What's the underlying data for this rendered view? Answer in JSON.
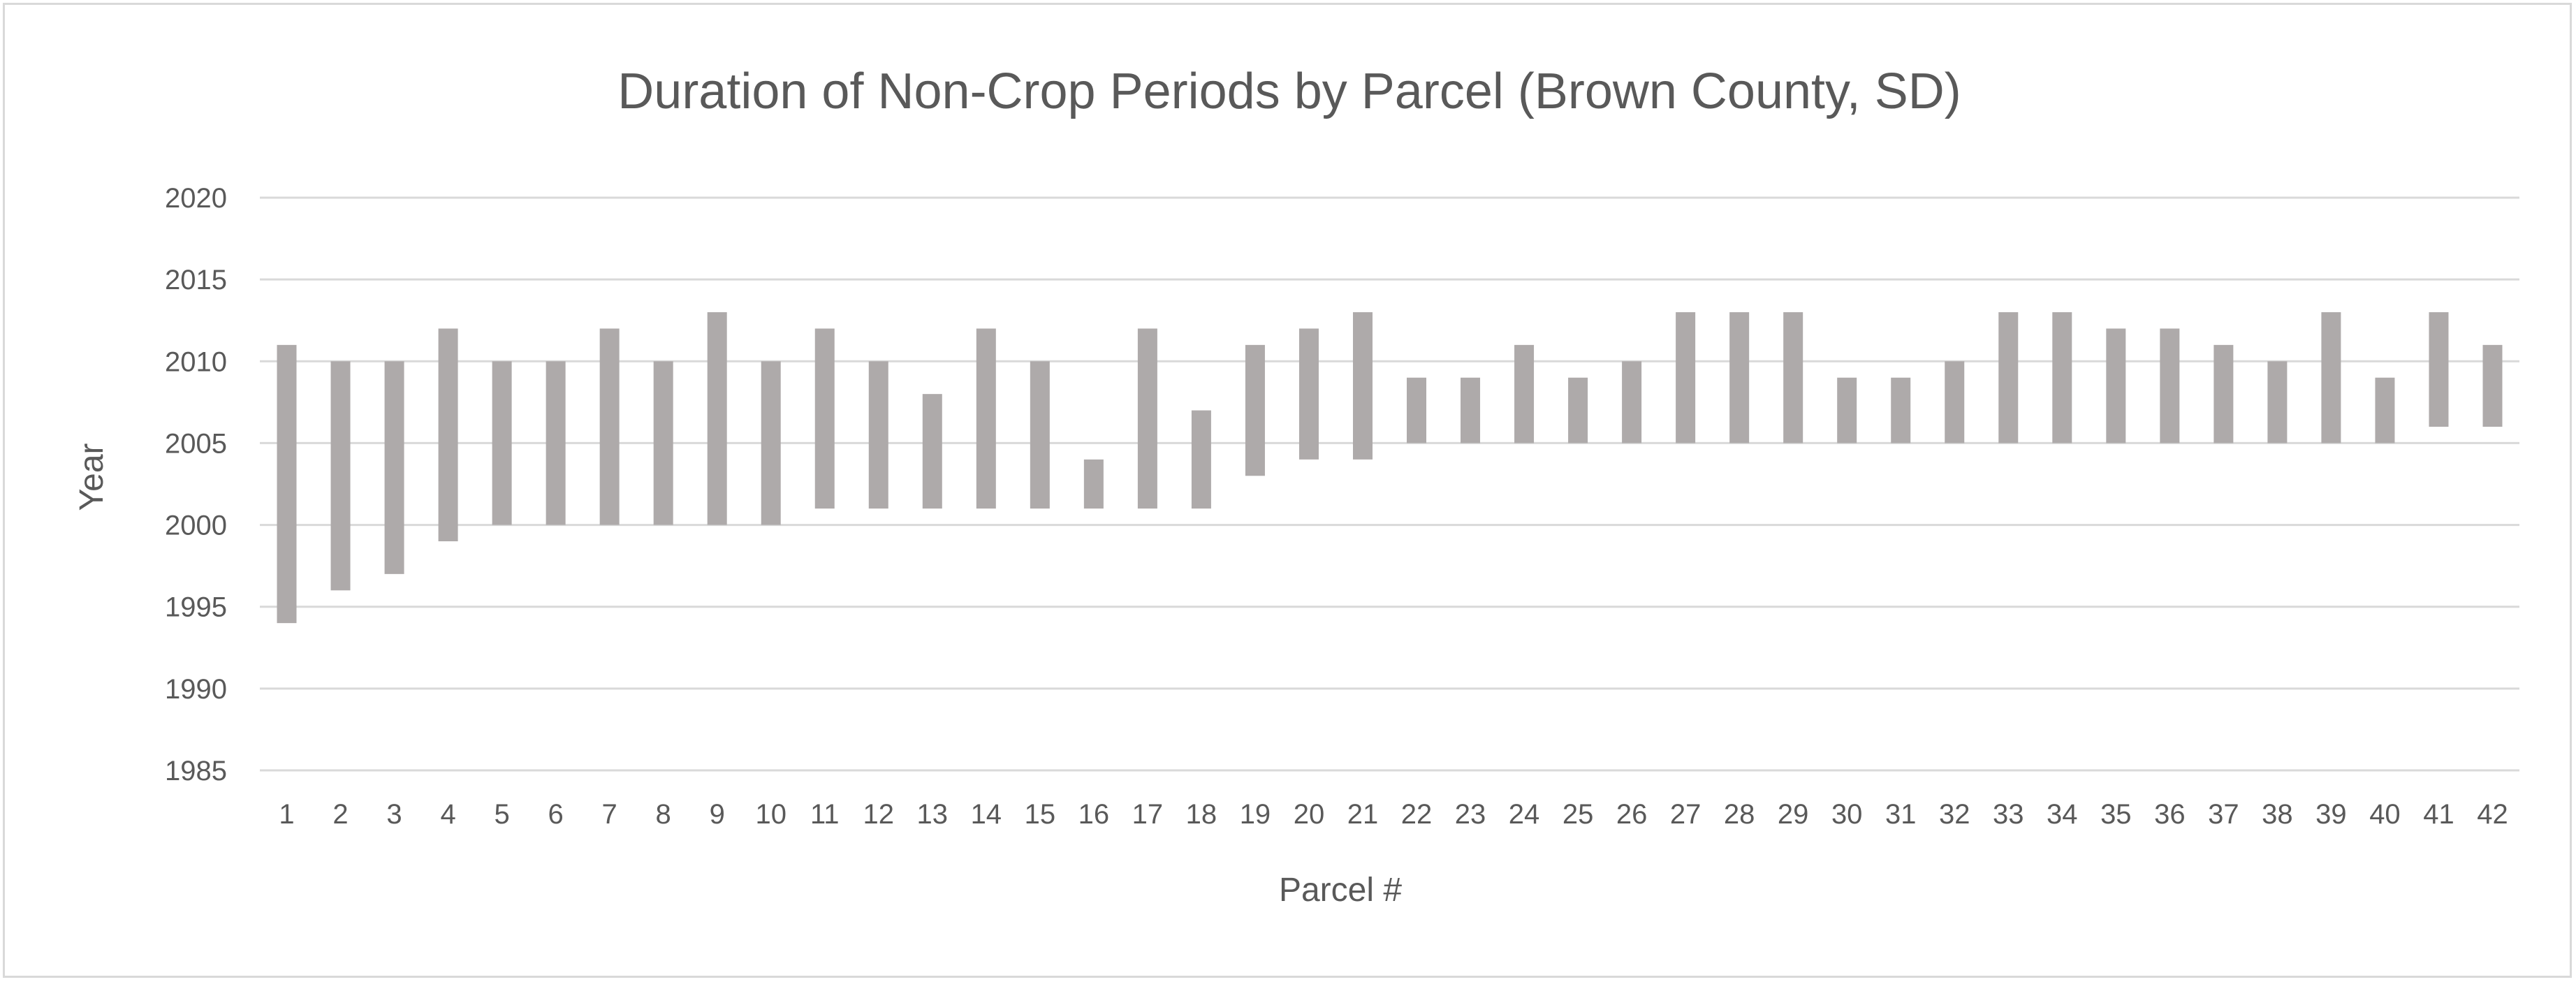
{
  "chart_data": {
    "type": "bar",
    "subtype": "floating-range",
    "title": "Duration of Non-Crop Periods by Parcel (Brown County, SD)",
    "xlabel": "Parcel #",
    "ylabel": "Year",
    "ylim": [
      1985,
      2020
    ],
    "yticks": [
      1985,
      1990,
      1995,
      2000,
      2005,
      2010,
      2015,
      2020
    ],
    "grid": true,
    "legend": "none",
    "bar_color": "#aeaaaa",
    "categories": [
      "1",
      "2",
      "3",
      "4",
      "5",
      "6",
      "7",
      "8",
      "9",
      "10",
      "11",
      "12",
      "13",
      "14",
      "15",
      "16",
      "17",
      "18",
      "19",
      "20",
      "21",
      "22",
      "23",
      "24",
      "25",
      "26",
      "27",
      "28",
      "29",
      "30",
      "31",
      "32",
      "33",
      "34",
      "35",
      "36",
      "37",
      "38",
      "39",
      "40",
      "41",
      "42"
    ],
    "start": [
      1994,
      1996,
      1997,
      1999,
      2000,
      2000,
      2000,
      2000,
      2000,
      2000,
      2001,
      2001,
      2001,
      2001,
      2001,
      2001,
      2001,
      2001,
      2003,
      2004,
      2004,
      2005,
      2005,
      2005,
      2005,
      2005,
      2005,
      2005,
      2005,
      2005,
      2005,
      2005,
      2005,
      2005,
      2005,
      2005,
      2005,
      2005,
      2005,
      2005,
      2006,
      2006
    ],
    "end": [
      2011,
      2010,
      2010,
      2012,
      2010,
      2010,
      2012,
      2010,
      2013,
      2010,
      2012,
      2010,
      2008,
      2012,
      2010,
      2004,
      2012,
      2007,
      2011,
      2012,
      2013,
      2009,
      2009,
      2011,
      2009,
      2010,
      2013,
      2013,
      2013,
      2009,
      2009,
      2010,
      2013,
      2013,
      2012,
      2012,
      2011,
      2010,
      2013,
      2009,
      2013,
      2011
    ]
  }
}
